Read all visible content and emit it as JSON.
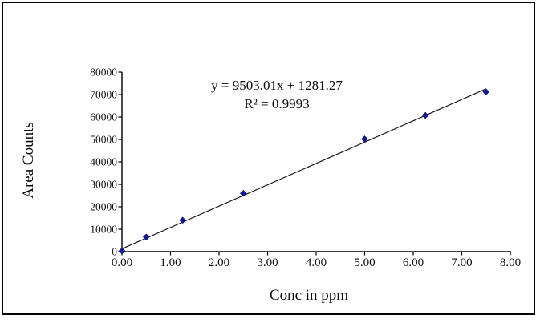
{
  "window": {
    "background_color": "#ffffff",
    "border_color": "#000000"
  },
  "chart_data": {
    "type": "scatter",
    "title": "",
    "xlabel": "Conc in ppm",
    "ylabel": "Area Counts",
    "x": [
      0.0,
      0.5,
      1.25,
      2.5,
      5.0,
      6.25,
      7.5
    ],
    "y": [
      300,
      6500,
      14000,
      26000,
      50200,
      60700,
      71200
    ],
    "trendline": {
      "slope": 9503.01,
      "intercept": 1281.27,
      "x_start": 0,
      "x_end": 7.5,
      "color": "#1a1a1a"
    },
    "annotation": {
      "line1": "y = 9503.01x + 1281.27",
      "line2": "R² = 0.9993"
    },
    "xlim": [
      0,
      8
    ],
    "ylim": [
      0,
      80000
    ],
    "x_tick_step": 1,
    "y_tick_step": 10000,
    "x_tick_labels": [
      "0.00",
      "1.00",
      "2.00",
      "3.00",
      "4.00",
      "5.00",
      "6.00",
      "7.00",
      "8.00"
    ],
    "y_tick_labels": [
      "0",
      "10000",
      "20000",
      "30000",
      "40000",
      "50000",
      "60000",
      "70000",
      "80000"
    ],
    "grid": false,
    "legend": false,
    "marker_shape": "diamond",
    "marker_color": "#15159a",
    "axis_color": "#000000",
    "tick_label_color": "#101014"
  }
}
